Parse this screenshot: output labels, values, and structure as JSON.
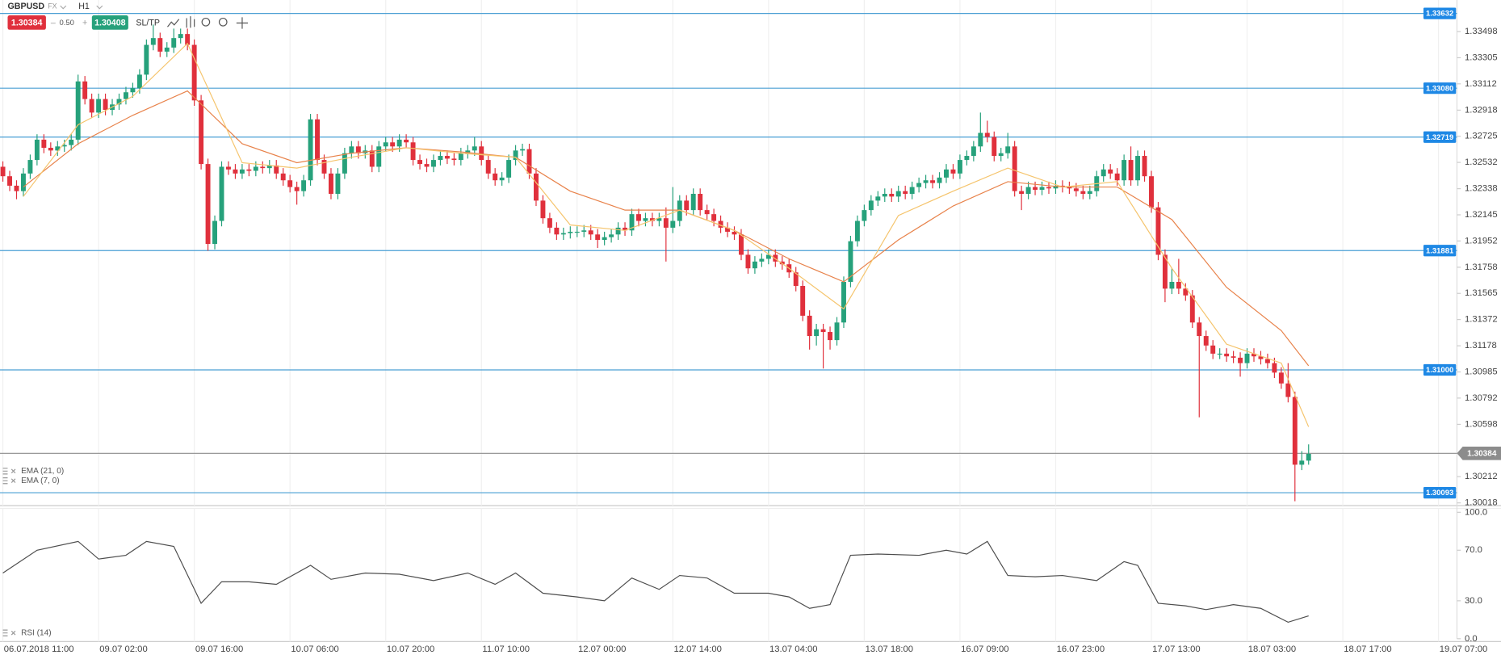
{
  "toolbar": {
    "symbol": "GBPUSD",
    "market": "FX",
    "timeframe": "H1",
    "sell": "1.30384",
    "spread": "0.50",
    "buy": "1.30408",
    "sltp": "SL/TP"
  },
  "chart_data": [
    {
      "type": "candlestick",
      "up_color": "#26a17b",
      "down_color": "#e0303c",
      "xlim": [
        -0.42,
        212.7
      ],
      "ylim": [
        1.29998,
        1.33731
      ],
      "yticks": [
        1.33498,
        1.33305,
        1.33112,
        1.32918,
        1.32725,
        1.32532,
        1.32338,
        1.32145,
        1.31952,
        1.31758,
        1.31565,
        1.31372,
        1.31178,
        1.30985,
        1.30792,
        1.30598,
        1.30212,
        1.30018
      ],
      "xticks": [
        {
          "value": 0,
          "label": "06.07.2018 11:00"
        },
        {
          "value": 14,
          "label": "09.07 02:00"
        },
        {
          "value": 28,
          "label": "09.07 16:00"
        },
        {
          "value": 42,
          "label": "10.07 06:00"
        },
        {
          "value": 56,
          "label": "10.07 20:00"
        },
        {
          "value": 70,
          "label": "11.07 10:00"
        },
        {
          "value": 84,
          "label": "12.07 00:00"
        },
        {
          "value": 98,
          "label": "12.07 14:00"
        },
        {
          "value": 112,
          "label": "13.07 04:00"
        },
        {
          "value": 126,
          "label": "13.07 18:00"
        },
        {
          "value": 140,
          "label": "16.07 09:00"
        },
        {
          "value": 154,
          "label": "16.07 23:00"
        },
        {
          "value": 168,
          "label": "17.07 13:00"
        },
        {
          "value": 182,
          "label": "18.07 03:00"
        },
        {
          "value": 196,
          "label": "18.07 17:00"
        },
        {
          "value": 210,
          "label": "19.07 07:00"
        }
      ],
      "open": [
        1.325,
        1.3243,
        1.3236,
        1.3232,
        1.3245,
        1.3255,
        1.327,
        1.3264,
        1.3262,
        1.3265,
        1.3266,
        1.327,
        1.3313,
        1.33,
        1.329,
        1.33,
        1.3292,
        1.3296,
        1.33,
        1.3305,
        1.3308,
        1.3318,
        1.334,
        1.3345,
        1.3335,
        1.3338,
        1.3345,
        1.3348,
        1.334,
        1.3299,
        1.3252,
        1.3193,
        1.321,
        1.325,
        1.3248,
        1.3245,
        1.3248,
        1.3247,
        1.325,
        1.3249,
        1.3251,
        1.3245,
        1.324,
        1.3235,
        1.3232,
        1.324,
        1.3285,
        1.3255,
        1.3245,
        1.323,
        1.3245,
        1.326,
        1.3265,
        1.326,
        1.3262,
        1.325,
        1.3265,
        1.3268,
        1.3265,
        1.327,
        1.3268,
        1.3255,
        1.3252,
        1.325,
        1.3255,
        1.3258,
        1.3256,
        1.3255,
        1.326,
        1.3262,
        1.3265,
        1.3255,
        1.3245,
        1.324,
        1.3242,
        1.3255,
        1.3262,
        1.3263,
        1.3245,
        1.3225,
        1.3212,
        1.3205,
        1.32,
        1.3201,
        1.3202,
        1.3202,
        1.3203,
        1.32,
        1.3196,
        1.3198,
        1.32,
        1.3205,
        1.3203,
        1.3215,
        1.321,
        1.3212,
        1.321,
        1.3212,
        1.3205,
        1.321,
        1.3225,
        1.3218,
        1.323,
        1.3218,
        1.3215,
        1.321,
        1.3205,
        1.3202,
        1.32,
        1.3185,
        1.3175,
        1.318,
        1.3182,
        1.3185,
        1.318,
        1.3178,
        1.3172,
        1.3162,
        1.314,
        1.3125,
        1.313,
        1.3128,
        1.3122,
        1.3135,
        1.3165,
        1.3195,
        1.321,
        1.3218,
        1.3225,
        1.3228,
        1.323,
        1.3228,
        1.3232,
        1.323,
        1.3235,
        1.3238,
        1.324,
        1.3238,
        1.3242,
        1.3248,
        1.3245,
        1.3255,
        1.3258,
        1.3265,
        1.3275,
        1.3272,
        1.3258,
        1.326,
        1.3265,
        1.3232,
        1.323,
        1.3235,
        1.3233,
        1.3235,
        1.3234,
        1.3236,
        1.3235,
        1.3234,
        1.3232,
        1.323,
        1.3232,
        1.3243,
        1.3248,
        1.3245,
        1.324,
        1.3255,
        1.324,
        1.3258,
        1.3243,
        1.322,
        1.3185,
        1.316,
        1.3165,
        1.316,
        1.3155,
        1.3135,
        1.3125,
        1.3118,
        1.3112,
        1.3112,
        1.311,
        1.3109,
        1.3105,
        1.3112,
        1.311,
        1.3108,
        1.3105,
        1.3098,
        1.309,
        1.308,
        1.303,
        1.3033
      ],
      "high": [
        1.3254,
        1.3247,
        1.324,
        1.3249,
        1.3259,
        1.3274,
        1.3274,
        1.3268,
        1.3269,
        1.327,
        1.3274,
        1.3318,
        1.3317,
        1.3304,
        1.3304,
        1.3304,
        1.33,
        1.3304,
        1.3309,
        1.3312,
        1.3322,
        1.3344,
        1.3355,
        1.3349,
        1.3342,
        1.3352,
        1.3352,
        1.3352,
        1.3344,
        1.3303,
        1.3256,
        1.3214,
        1.3254,
        1.3254,
        1.3252,
        1.3252,
        1.3252,
        1.3254,
        1.3254,
        1.3255,
        1.3255,
        1.3249,
        1.3244,
        1.3239,
        1.3244,
        1.3289,
        1.3289,
        1.3259,
        1.3249,
        1.3249,
        1.3264,
        1.3269,
        1.3269,
        1.3266,
        1.3266,
        1.3269,
        1.3272,
        1.3272,
        1.3274,
        1.3274,
        1.3272,
        1.3259,
        1.3256,
        1.3259,
        1.3262,
        1.3262,
        1.326,
        1.3264,
        1.3266,
        1.3272,
        1.3269,
        1.3259,
        1.3249,
        1.3246,
        1.3259,
        1.3266,
        1.3267,
        1.3267,
        1.3249,
        1.3229,
        1.3216,
        1.3209,
        1.3205,
        1.3206,
        1.3206,
        1.3207,
        1.3207,
        1.3204,
        1.3202,
        1.3204,
        1.3209,
        1.3209,
        1.3219,
        1.3219,
        1.3216,
        1.3216,
        1.3216,
        1.322,
        1.3235,
        1.3229,
        1.3229,
        1.3234,
        1.3234,
        1.3222,
        1.3219,
        1.3214,
        1.3209,
        1.3206,
        1.3204,
        1.3189,
        1.3184,
        1.3186,
        1.3189,
        1.3189,
        1.3184,
        1.3182,
        1.3176,
        1.3166,
        1.3144,
        1.3134,
        1.3134,
        1.3132,
        1.3139,
        1.3169,
        1.3199,
        1.3214,
        1.3222,
        1.3229,
        1.3232,
        1.3234,
        1.3234,
        1.3236,
        1.3236,
        1.3239,
        1.3242,
        1.3244,
        1.3244,
        1.3246,
        1.3252,
        1.3252,
        1.3259,
        1.3262,
        1.3269,
        1.329,
        1.3284,
        1.3276,
        1.3264,
        1.3275,
        1.3269,
        1.3236,
        1.3239,
        1.3239,
        1.3239,
        1.3239,
        1.324,
        1.324,
        1.3239,
        1.3238,
        1.3236,
        1.3236,
        1.3247,
        1.3252,
        1.3252,
        1.3249,
        1.3259,
        1.3265,
        1.3262,
        1.3262,
        1.3247,
        1.3224,
        1.3189,
        1.3175,
        1.3182,
        1.3164,
        1.3159,
        1.3139,
        1.3129,
        1.3122,
        1.3116,
        1.3116,
        1.3114,
        1.3113,
        1.3116,
        1.3116,
        1.3114,
        1.3112,
        1.3109,
        1.3102,
        1.3105,
        1.3084,
        1.304,
        1.3045
      ],
      "low": [
        1.3239,
        1.3232,
        1.3226,
        1.3228,
        1.3241,
        1.3251,
        1.326,
        1.3258,
        1.3258,
        1.3261,
        1.3262,
        1.3266,
        1.3296,
        1.3286,
        1.3286,
        1.3288,
        1.3288,
        1.3292,
        1.3296,
        1.3301,
        1.3304,
        1.3314,
        1.3336,
        1.3331,
        1.3331,
        1.3334,
        1.3341,
        1.3336,
        1.3295,
        1.3248,
        1.3188,
        1.3189,
        1.3206,
        1.3244,
        1.3241,
        1.3241,
        1.3243,
        1.3243,
        1.3245,
        1.3245,
        1.3241,
        1.3236,
        1.3231,
        1.3222,
        1.3228,
        1.3236,
        1.3251,
        1.3241,
        1.3226,
        1.3226,
        1.3241,
        1.3256,
        1.3256,
        1.3256,
        1.3246,
        1.3246,
        1.3261,
        1.3261,
        1.3261,
        1.3264,
        1.3251,
        1.3248,
        1.3246,
        1.3246,
        1.3251,
        1.3252,
        1.3251,
        1.3251,
        1.3256,
        1.3258,
        1.3251,
        1.3241,
        1.3236,
        1.3236,
        1.3238,
        1.3251,
        1.3258,
        1.3241,
        1.3221,
        1.3208,
        1.3201,
        1.3196,
        1.3196,
        1.3197,
        1.3198,
        1.3198,
        1.3196,
        1.319,
        1.3192,
        1.3194,
        1.3196,
        1.3199,
        1.3199,
        1.3206,
        1.3206,
        1.3206,
        1.3206,
        1.318,
        1.3201,
        1.3206,
        1.3214,
        1.3214,
        1.3214,
        1.3211,
        1.3206,
        1.3201,
        1.3198,
        1.3196,
        1.3181,
        1.3171,
        1.3171,
        1.3176,
        1.3178,
        1.3176,
        1.3174,
        1.3168,
        1.3158,
        1.3136,
        1.3115,
        1.3118,
        1.3101,
        1.3115,
        1.3118,
        1.3131,
        1.3161,
        1.3191,
        1.3206,
        1.3214,
        1.3221,
        1.3224,
        1.3224,
        1.3224,
        1.3226,
        1.3226,
        1.3231,
        1.3234,
        1.3234,
        1.3234,
        1.3238,
        1.3241,
        1.3241,
        1.3251,
        1.3254,
        1.3261,
        1.3268,
        1.3254,
        1.3254,
        1.3256,
        1.3228,
        1.3218,
        1.3226,
        1.3229,
        1.3229,
        1.323,
        1.323,
        1.3231,
        1.323,
        1.3228,
        1.3226,
        1.3226,
        1.3228,
        1.3239,
        1.3241,
        1.3236,
        1.3236,
        1.3236,
        1.3236,
        1.3239,
        1.3216,
        1.3181,
        1.315,
        1.3156,
        1.3156,
        1.3151,
        1.3131,
        1.3065,
        1.3114,
        1.3108,
        1.3108,
        1.3106,
        1.3105,
        1.3095,
        1.3101,
        1.3106,
        1.3104,
        1.3101,
        1.3094,
        1.3086,
        1.3076,
        1.3003,
        1.3026,
        1.303
      ],
      "close": [
        1.3243,
        1.3236,
        1.3232,
        1.3245,
        1.3255,
        1.327,
        1.3264,
        1.3262,
        1.3265,
        1.3266,
        1.327,
        1.3313,
        1.33,
        1.329,
        1.33,
        1.3292,
        1.3296,
        1.33,
        1.3305,
        1.3308,
        1.3318,
        1.334,
        1.3345,
        1.3335,
        1.3338,
        1.3345,
        1.3348,
        1.334,
        1.3299,
        1.3252,
        1.3193,
        1.321,
        1.325,
        1.3248,
        1.3245,
        1.3248,
        1.3247,
        1.325,
        1.3249,
        1.3251,
        1.3245,
        1.324,
        1.3235,
        1.3232,
        1.324,
        1.3285,
        1.3255,
        1.3245,
        1.323,
        1.3245,
        1.326,
        1.3265,
        1.326,
        1.3262,
        1.325,
        1.3265,
        1.3268,
        1.3265,
        1.327,
        1.3268,
        1.3255,
        1.3252,
        1.325,
        1.3255,
        1.3258,
        1.3256,
        1.3255,
        1.326,
        1.3262,
        1.3265,
        1.3255,
        1.3245,
        1.324,
        1.3242,
        1.3255,
        1.3262,
        1.3263,
        1.3245,
        1.3225,
        1.3212,
        1.3205,
        1.32,
        1.3201,
        1.3202,
        1.3202,
        1.3203,
        1.32,
        1.3196,
        1.3198,
        1.32,
        1.3205,
        1.3203,
        1.3215,
        1.321,
        1.3212,
        1.321,
        1.3212,
        1.3205,
        1.321,
        1.3225,
        1.3218,
        1.323,
        1.3218,
        1.3215,
        1.321,
        1.3205,
        1.3202,
        1.32,
        1.3185,
        1.3175,
        1.318,
        1.3182,
        1.3185,
        1.318,
        1.3178,
        1.3172,
        1.3162,
        1.314,
        1.3125,
        1.313,
        1.3128,
        1.3122,
        1.3135,
        1.3165,
        1.3195,
        1.321,
        1.3218,
        1.3225,
        1.3228,
        1.323,
        1.3228,
        1.3232,
        1.323,
        1.3235,
        1.3238,
        1.324,
        1.3238,
        1.3242,
        1.3248,
        1.3245,
        1.3255,
        1.3258,
        1.3265,
        1.3275,
        1.3272,
        1.3258,
        1.326,
        1.3265,
        1.3232,
        1.323,
        1.3235,
        1.3233,
        1.3235,
        1.3234,
        1.3236,
        1.3235,
        1.3234,
        1.3232,
        1.323,
        1.3232,
        1.3243,
        1.3248,
        1.3245,
        1.324,
        1.3255,
        1.324,
        1.3258,
        1.3243,
        1.322,
        1.3185,
        1.316,
        1.3165,
        1.316,
        1.3155,
        1.3135,
        1.3125,
        1.3118,
        1.3112,
        1.3112,
        1.311,
        1.3109,
        1.3105,
        1.3112,
        1.311,
        1.3108,
        1.3105,
        1.3098,
        1.309,
        1.308,
        1.303,
        1.3033,
        1.3038
      ],
      "series": [
        {
          "name": "EMA (21, 0)",
          "color": "#e8824a",
          "x": [
            3,
            11,
            19,
            27,
            35,
            43,
            51,
            59,
            67,
            75,
            83,
            91,
            99,
            107,
            115,
            123,
            131,
            139,
            147,
            155,
            163,
            171,
            179,
            187,
            191
          ],
          "values": [
            1.3235,
            1.3267,
            1.3288,
            1.3306,
            1.3267,
            1.3253,
            1.326,
            1.3264,
            1.3261,
            1.3257,
            1.3232,
            1.3218,
            1.3218,
            1.3203,
            1.3182,
            1.3165,
            1.3196,
            1.3221,
            1.3239,
            1.3235,
            1.3235,
            1.3211,
            1.3161,
            1.3129,
            1.3103
          ]
        },
        {
          "name": "EMA (7, 0)",
          "color": "#f5c46c",
          "x": [
            3,
            11,
            19,
            27,
            35,
            43,
            51,
            59,
            67,
            75,
            83,
            91,
            99,
            107,
            115,
            123,
            131,
            139,
            147,
            155,
            163,
            171,
            179,
            187,
            191
          ],
          "values": [
            1.3228,
            1.3281,
            1.3302,
            1.3341,
            1.3253,
            1.3249,
            1.3257,
            1.3264,
            1.326,
            1.3257,
            1.3207,
            1.3203,
            1.3218,
            1.3203,
            1.3175,
            1.3145,
            1.3214,
            1.3232,
            1.3249,
            1.3235,
            1.3239,
            1.3175,
            1.3119,
            1.3105,
            1.3058
          ]
        }
      ],
      "levels": [
        1.33632,
        {
          "value": 1.3308,
          "label": "1.33080"
        },
        1.32719,
        1.31881,
        {
          "value": 1.31,
          "label": "1.31000"
        },
        1.30093
      ],
      "level_color": "#4a9fd4",
      "level_label_color": "#1e88e5",
      "current_price": 1.30384,
      "current_price_color": "#8c8c8c"
    },
    {
      "type": "line",
      "ylim": [
        0,
        100
      ],
      "yticks": [
        {
          "value": 100,
          "label": "100.0"
        },
        {
          "value": 70,
          "label": "70.0"
        },
        {
          "value": 30,
          "label": "30.0"
        },
        {
          "value": 0,
          "label": "0.0"
        }
      ],
      "series": [
        {
          "name": "RSI (14)",
          "color": "#4d4d4d",
          "x": [
            0,
            5,
            11,
            14,
            18,
            21,
            25,
            29,
            32,
            36,
            40,
            45,
            48,
            53,
            58,
            63,
            68,
            72,
            75,
            79,
            84,
            88,
            92,
            96,
            99,
            103,
            107,
            112,
            115,
            118,
            121,
            124,
            128,
            134,
            138,
            141,
            144,
            147,
            151,
            155,
            160,
            164,
            166,
            169,
            173,
            176,
            180,
            184,
            188,
            191
          ],
          "values": [
            52,
            70,
            77,
            63,
            66,
            77,
            73,
            28,
            45,
            45,
            43,
            58,
            47,
            52,
            51,
            46,
            52,
            43,
            52,
            36,
            33,
            30,
            48,
            39,
            50,
            48,
            36,
            36,
            33,
            24,
            27,
            66,
            67,
            66,
            70,
            67,
            77,
            50,
            49,
            50,
            46,
            61,
            58,
            28,
            26,
            23,
            27,
            24,
            13,
            18
          ]
        }
      ]
    }
  ]
}
